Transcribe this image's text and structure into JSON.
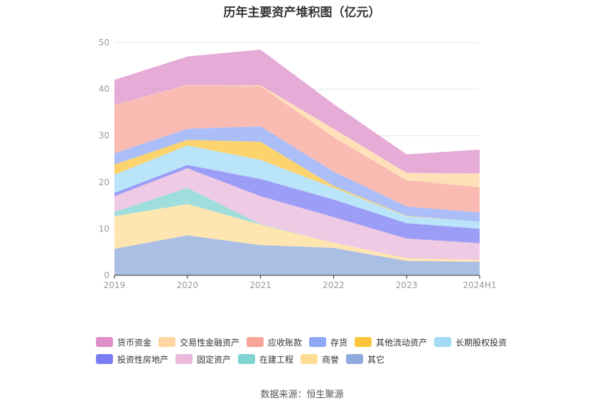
{
  "chart_data": {
    "type": "area",
    "stacked": true,
    "title": "历年主要资产堆积图（亿元）",
    "categories": [
      "2019",
      "2020",
      "2021",
      "2022",
      "2023",
      "2024H1"
    ],
    "ylim": [
      0,
      50
    ],
    "yticks": [
      "0",
      "10",
      "20",
      "30",
      "40",
      "50"
    ],
    "grid": true,
    "legend_position": "bottom",
    "series": [
      {
        "name": "其它",
        "color": "#8faadc",
        "values": [
          5.7,
          8.6,
          6.5,
          5.9,
          3.1,
          2.9
        ]
      },
      {
        "name": "商誉",
        "color": "#ffdc96",
        "values": [
          7.0,
          6.7,
          4.4,
          1.1,
          0.6,
          0.4
        ]
      },
      {
        "name": "在建工程",
        "color": "#7fd3d0",
        "values": [
          0.9,
          3.5,
          0.1,
          0.0,
          0.0,
          0.0
        ]
      },
      {
        "name": "固定资产",
        "color": "#e9b8db",
        "values": [
          3.4,
          4.2,
          6.0,
          5.5,
          4.2,
          3.6
        ]
      },
      {
        "name": "投资性房地产",
        "color": "#7b7cf4",
        "values": [
          0.7,
          0.7,
          3.7,
          3.8,
          3.3,
          3.1
        ]
      },
      {
        "name": "长期股权投资",
        "color": "#a3dbf7",
        "values": [
          3.9,
          4.2,
          4.1,
          2.5,
          1.5,
          1.5
        ]
      },
      {
        "name": "其他流动资产",
        "color": "#fbc43b",
        "values": [
          2.2,
          1.2,
          3.9,
          0.4,
          0.1,
          0.0
        ]
      },
      {
        "name": "存货",
        "color": "#8fa8f5",
        "values": [
          2.4,
          2.4,
          3.3,
          3.1,
          2.0,
          2.0
        ]
      },
      {
        "name": "应收账款",
        "color": "#f8a499",
        "values": [
          10.4,
          9.3,
          8.6,
          7.4,
          5.6,
          5.4
        ]
      },
      {
        "name": "交易性金融资产",
        "color": "#ffd6a0",
        "values": [
          0.0,
          0.1,
          0.2,
          1.8,
          1.6,
          3.0
        ]
      },
      {
        "name": "货币资金",
        "color": "#de8fc9",
        "values": [
          5.4,
          6.1,
          7.7,
          5.3,
          4.0,
          5.1
        ]
      }
    ]
  },
  "legend": {
    "row1": [
      "货币资金",
      "交易性金融资产",
      "应收账款",
      "存货",
      "其他流动资产",
      "长期股权投资"
    ],
    "row2": [
      "投资性房地产",
      "固定资产",
      "在建工程",
      "商誉",
      "其它"
    ]
  },
  "source": "数据来源：恒生聚源"
}
